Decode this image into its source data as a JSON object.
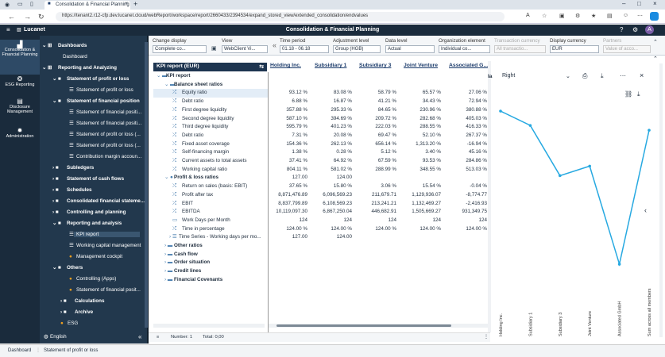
{
  "browser": {
    "tab_title": "Consolidation & Financial Planning",
    "url": "https://tenant2.r12-cfp.dev.lucanet.cloud/webReport/workspace/report/2660433/2394534/expand_stored_view/extended_consolidation/endvalues"
  },
  "app": {
    "brand": "Lucanet",
    "title": "Consolidation & Financial Planning",
    "avatar": "A"
  },
  "sidebar": [
    {
      "label": "Consolidation & Financial Planning"
    },
    {
      "label": "ESG Reporting"
    },
    {
      "label": "Disclosure Management"
    },
    {
      "label": "Administration"
    }
  ],
  "nav": [
    {
      "label": "Dashboards"
    },
    {
      "label": "Dashboard"
    },
    {
      "label": "Reporting and Analyzing"
    },
    {
      "label": "Statement of profit or loss"
    },
    {
      "label": "Statement of profit or loss"
    },
    {
      "label": "Statement of financial position"
    },
    {
      "label": "Statement of financial positi..."
    },
    {
      "label": "Statement of financial positi..."
    },
    {
      "label": "Statement of profit or loss (..."
    },
    {
      "label": "Statement of profit or loss (..."
    },
    {
      "label": "Contribution margin accoun..."
    },
    {
      "label": "Subledgers"
    },
    {
      "label": "Statement of cash flows"
    },
    {
      "label": "Schedules"
    },
    {
      "label": "Consolidated financial stateme..."
    },
    {
      "label": "Controlling and planning"
    },
    {
      "label": "Reporting and analysis"
    },
    {
      "label": "KPI report"
    },
    {
      "label": "Working capital management"
    },
    {
      "label": "Management cockpit"
    },
    {
      "label": "Others"
    },
    {
      "label": "Controlling (Apps)"
    },
    {
      "label": "Statement of financial posit..."
    },
    {
      "label": "Calculations"
    },
    {
      "label": "Archive"
    },
    {
      "label": "ESG"
    }
  ],
  "language": "English",
  "toolbar": {
    "change_display": {
      "label": "Change display",
      "value": "Complete co..."
    },
    "view": {
      "label": "View",
      "value": "WebClient Vi..."
    },
    "time_period": {
      "label": "Time period",
      "value": "01.18 - 06.18"
    },
    "adjustment_level": {
      "label": "Adjustment level",
      "value": "Group (HGB)"
    },
    "data_level": {
      "label": "Data level",
      "value": "Actual"
    },
    "org_element": {
      "label": "Organization element",
      "value": "Individual co..."
    },
    "transaction_currency": {
      "label": "Transaction currency",
      "value": "All transactio..."
    },
    "display_currency": {
      "label": "Display currency",
      "value": "EUR"
    },
    "partners": {
      "label": "Partners",
      "value": "Value of acco..."
    }
  },
  "grid": {
    "title": "KPI report (EUR)",
    "columns": [
      "Holding Inc.",
      "Subsidiary 1",
      "Subsidiary 3",
      "Joint Venture",
      "Associated G..."
    ],
    "rows": [
      {
        "label": "KPI report",
        "values": [
          "",
          "",
          "",
          "",
          ""
        ]
      },
      {
        "label": "Balance sheet ratios",
        "values": [
          "",
          "",
          "",
          "",
          ""
        ]
      },
      {
        "label": "Equity ratio",
        "values": [
          "93.12 %",
          "83.08 %",
          "58.79 %",
          "65.57 %",
          "27.06 %"
        ]
      },
      {
        "label": "Debt ratio",
        "values": [
          "6.88 %",
          "16.87 %",
          "41.21 %",
          "34.43 %",
          "72.94 %"
        ]
      },
      {
        "label": "First degree liquidity",
        "values": [
          "357.88 %",
          "295.33 %",
          "84.65 %",
          "230.96 %",
          "380.88 %"
        ]
      },
      {
        "label": "Second degree liquidity",
        "values": [
          "587.10 %",
          "394.69 %",
          "209.72 %",
          "282.68 %",
          "405.03 %"
        ]
      },
      {
        "label": "Third degree liquidity",
        "values": [
          "595.79 %",
          "401.23 %",
          "222.03 %",
          "288.55 %",
          "416.33 %"
        ]
      },
      {
        "label": "Debt ratio",
        "values": [
          "7.31 %",
          "20.08 %",
          "69.47 %",
          "52.10 %",
          "267.37 %"
        ]
      },
      {
        "label": "Fixed asset coverage",
        "values": [
          "154.36 %",
          "262.13 %",
          "656.14 %",
          "1,313.20 %",
          "-16.94 %"
        ]
      },
      {
        "label": "Self-financing margin",
        "values": [
          "1.38 %",
          "0.28 %",
          "5.12 %",
          "3.40 %",
          "45.16 %"
        ]
      },
      {
        "label": "Current assets to total assets",
        "values": [
          "37.41 %",
          "64.92 %",
          "67.59 %",
          "93.53 %",
          "284.86 %"
        ]
      },
      {
        "label": "Working capital ratio",
        "values": [
          "804.11 %",
          "581.02 %",
          "288.99 %",
          "348.55 %",
          "513.03 %"
        ]
      },
      {
        "label": "Profit & loss ratios",
        "values": [
          "127.00",
          "124.00",
          "",
          "",
          ""
        ]
      },
      {
        "label": "Return on sales (basis: EBIT)",
        "values": [
          "37.65 %",
          "15.80 %",
          "3.06 %",
          "15.54 %",
          "-0.04 %"
        ]
      },
      {
        "label": "Profit after tax",
        "values": [
          "8,871,476.89",
          "6,096,569.23",
          "211,679.71",
          "1,129,936.07",
          "-8,774.77"
        ]
      },
      {
        "label": "EBIT",
        "values": [
          "8,837,799.89",
          "6,108,569.23",
          "213,241.21",
          "1,132,469.27",
          "-2,416.93"
        ]
      },
      {
        "label": "EBITDA",
        "values": [
          "10,119,097.30",
          "6,867,250.04",
          "446,682.91",
          "1,505,669.27",
          "931,349.75"
        ]
      },
      {
        "label": "Work Days per Month",
        "values": [
          "124",
          "124",
          "124",
          "124",
          "124"
        ]
      },
      {
        "label": "Time in percentage",
        "values": [
          "124.00 %",
          "124.00 %",
          "124.00 %",
          "124.00 %",
          "124.00 %"
        ]
      },
      {
        "label": "Time Series - Working days per mo...",
        "values": [
          "127.00",
          "124.00",
          "",
          "",
          ""
        ]
      },
      {
        "label": "Other ratios",
        "values": [
          "",
          "",
          "",
          "",
          ""
        ]
      },
      {
        "label": "Cash flow",
        "values": [
          "",
          "",
          "",
          "",
          ""
        ]
      },
      {
        "label": "Order situation",
        "values": [
          "",
          "",
          "",
          "",
          ""
        ]
      },
      {
        "label": "Credit lines",
        "values": [
          "",
          "",
          "",
          "",
          ""
        ]
      },
      {
        "label": "Financial Covenants",
        "values": [
          "",
          "",
          "",
          "",
          ""
        ]
      }
    ]
  },
  "status": {
    "number_label": "Number: 1",
    "total_label": "Total: 0,00"
  },
  "panel": {
    "dropdown": "Right",
    "side_letter": "la"
  },
  "chart_data": {
    "type": "line",
    "categories": [
      "Holding Inc.",
      "Subsidiary 1",
      "Subsidiary 3",
      "Joint Venture",
      "Associated GmbH",
      "Sum across all members"
    ],
    "values": [
      170,
      140,
      35,
      55,
      -150,
      130
    ],
    "ylim": [
      -160,
      180
    ],
    "color": "#27a9e1",
    "grid": false,
    "legend": "none"
  },
  "bottom_tabs": [
    "Dashboard",
    "Statement of profit or loss"
  ]
}
